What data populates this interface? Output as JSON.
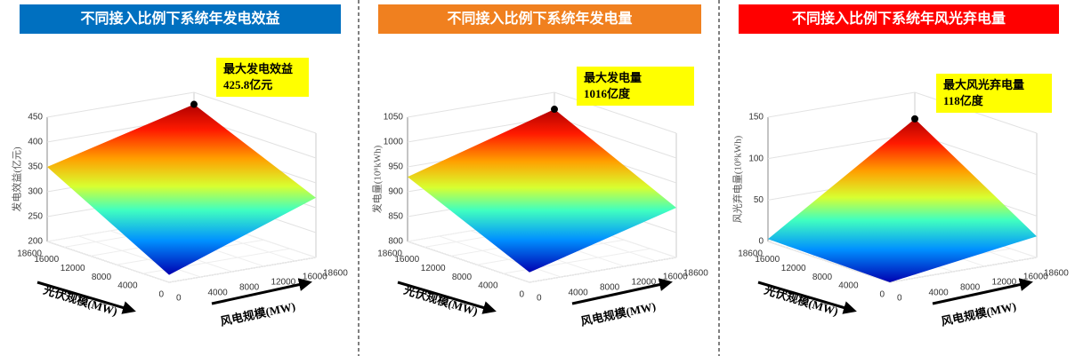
{
  "chart_data": [
    {
      "type": "surface",
      "title": "不同接入比例下系统年发电效益",
      "title_color": "#0070c0",
      "zlabel": "发电效益(亿元)",
      "zlim": [
        200,
        450
      ],
      "zticks": [
        200,
        250,
        300,
        350,
        400,
        450
      ],
      "xlabel": "风电规模(MW)",
      "xlim": [
        0,
        18600
      ],
      "xticks": [
        0,
        4000,
        8000,
        12000,
        16000,
        18600
      ],
      "ylabel": "光伏规模(MW)",
      "ylim": [
        0,
        18600
      ],
      "yticks": [
        0,
        4000,
        8000,
        12000,
        16000,
        18600
      ],
      "annotation": {
        "text": "最大发电效益",
        "value_label": "425.8亿元",
        "value": 425.8,
        "x": 18600,
        "y": 18600
      }
    },
    {
      "type": "surface",
      "title": "不同接入比例下系统年发电量",
      "title_color": "#f0801f",
      "zlabel": "发电量(10⁸kWh)",
      "zlim": [
        800,
        1050
      ],
      "zticks": [
        800,
        850,
        900,
        950,
        1000,
        1050
      ],
      "xlabel": "风电规模(MW)",
      "xlim": [
        0,
        18600
      ],
      "xticks": [
        0,
        4000,
        8000,
        12000,
        16000,
        18600
      ],
      "ylabel": "光伏规模(MW)",
      "ylim": [
        0,
        18600
      ],
      "yticks": [
        0,
        4000,
        8000,
        12000,
        16000,
        18600
      ],
      "annotation": {
        "text": "最大发电量",
        "value_label": "1016亿度",
        "value": 1016,
        "x": 18600,
        "y": 18600
      }
    },
    {
      "type": "surface",
      "title": "不同接入比例下系统年风光弃电量",
      "title_color": "#ff0000",
      "zlabel": "风光弃电量(10⁸kWh)",
      "zlim": [
        0,
        150
      ],
      "zticks": [
        0,
        50,
        100,
        150
      ],
      "xlabel": "风电规模(MW)",
      "xlim": [
        0,
        18600
      ],
      "xticks": [
        0,
        4000,
        8000,
        12000,
        16000,
        18600
      ],
      "ylabel": "光伏规模(MW)",
      "ylim": [
        0,
        18600
      ],
      "yticks": [
        0,
        4000,
        8000,
        12000,
        16000,
        18600
      ],
      "annotation": {
        "text": "最大风光弃电量",
        "value_label": "118亿度",
        "value": 118,
        "x": 18600,
        "y": 18600
      }
    }
  ]
}
